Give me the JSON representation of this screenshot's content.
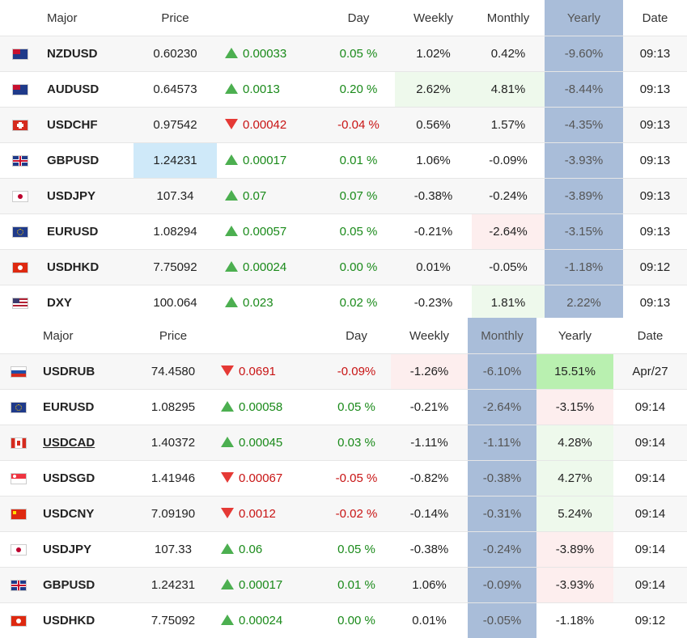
{
  "headers": {
    "t1": [
      "Major",
      "Price",
      "",
      "Day",
      "Weekly",
      "Monthly",
      "Yearly",
      "Date"
    ],
    "t2": [
      "Major",
      "Price",
      "",
      "Day",
      "Weekly",
      "Monthly",
      "Yearly",
      "Date"
    ]
  },
  "table1": [
    {
      "flag": "nz-flag-icon",
      "sym": "NZDUSD",
      "price": "0.60230",
      "dir": "up",
      "chg": "0.00033",
      "day": "0.05 %",
      "weekly": "1.02%",
      "monthly": "0.42%",
      "yearly": "-9.60%",
      "date": "09:13"
    },
    {
      "flag": "au-flag-icon",
      "sym": "AUDUSD",
      "price": "0.64573",
      "dir": "up",
      "chg": "0.0013",
      "day": "0.20 %",
      "weekly": "2.62%",
      "monthly": "4.81%",
      "yearly": "-8.44%",
      "date": "09:13"
    },
    {
      "flag": "ch-flag-icon",
      "sym": "USDCHF",
      "price": "0.97542",
      "dir": "dn",
      "chg": "0.00042",
      "day": "-0.04 %",
      "weekly": "0.56%",
      "monthly": "1.57%",
      "yearly": "-4.35%",
      "date": "09:13"
    },
    {
      "flag": "gb-flag-icon",
      "sym": "GBPUSD",
      "price": "1.24231",
      "dir": "up",
      "chg": "0.00017",
      "day": "0.01 %",
      "weekly": "1.06%",
      "monthly": "-0.09%",
      "yearly": "-3.93%",
      "date": "09:13"
    },
    {
      "flag": "jp-flag-icon",
      "sym": "USDJPY",
      "price": "107.34",
      "dir": "up",
      "chg": "0.07",
      "day": "0.07 %",
      "weekly": "-0.38%",
      "monthly": "-0.24%",
      "yearly": "-3.89%",
      "date": "09:13"
    },
    {
      "flag": "eu-flag-icon",
      "sym": "EURUSD",
      "price": "1.08294",
      "dir": "up",
      "chg": "0.00057",
      "day": "0.05 %",
      "weekly": "-0.21%",
      "monthly": "-2.64%",
      "yearly": "-3.15%",
      "date": "09:13"
    },
    {
      "flag": "hk-flag-icon",
      "sym": "USDHKD",
      "price": "7.75092",
      "dir": "up",
      "chg": "0.00024",
      "day": "0.00 %",
      "weekly": "0.01%",
      "monthly": "-0.05%",
      "yearly": "-1.18%",
      "date": "09:12"
    },
    {
      "flag": "us-flag-icon",
      "sym": "DXY",
      "price": "100.064",
      "dir": "up",
      "chg": "0.023",
      "day": "0.02 %",
      "weekly": "-0.23%",
      "monthly": "1.81%",
      "yearly": "2.22%",
      "date": "09:13"
    }
  ],
  "table2": [
    {
      "flag": "ru-flag-icon",
      "sym": "USDRUB",
      "price": "74.4580",
      "dir": "dn",
      "chg": "0.0691",
      "day": "-0.09%",
      "weekly": "-1.26%",
      "monthly": "-6.10%",
      "yearly": "15.51%",
      "date": "Apr/27"
    },
    {
      "flag": "eu-flag-icon",
      "sym": "EURUSD",
      "price": "1.08295",
      "dir": "up",
      "chg": "0.00058",
      "day": "0.05 %",
      "weekly": "-0.21%",
      "monthly": "-2.64%",
      "yearly": "-3.15%",
      "date": "09:14"
    },
    {
      "flag": "ca-flag-icon",
      "sym": "USDCAD",
      "price": "1.40372",
      "dir": "up",
      "chg": "0.00045",
      "day": "0.03 %",
      "weekly": "-1.11%",
      "monthly": "-1.11%",
      "yearly": "4.28%",
      "date": "09:14"
    },
    {
      "flag": "sg-flag-icon",
      "sym": "USDSGD",
      "price": "1.41946",
      "dir": "dn",
      "chg": "0.00067",
      "day": "-0.05 %",
      "weekly": "-0.82%",
      "monthly": "-0.38%",
      "yearly": "4.27%",
      "date": "09:14"
    },
    {
      "flag": "cn-flag-icon",
      "sym": "USDCNY",
      "price": "7.09190",
      "dir": "dn",
      "chg": "0.0012",
      "day": "-0.02 %",
      "weekly": "-0.14%",
      "monthly": "-0.31%",
      "yearly": "5.24%",
      "date": "09:14"
    },
    {
      "flag": "jp-flag-icon",
      "sym": "USDJPY",
      "price": "107.33",
      "dir": "up",
      "chg": "0.06",
      "day": "0.05 %",
      "weekly": "-0.38%",
      "monthly": "-0.24%",
      "yearly": "-3.89%",
      "date": "09:14"
    },
    {
      "flag": "gb-flag-icon",
      "sym": "GBPUSD",
      "price": "1.24231",
      "dir": "up",
      "chg": "0.00017",
      "day": "0.01 %",
      "weekly": "1.06%",
      "monthly": "-0.09%",
      "yearly": "-3.93%",
      "date": "09:14"
    },
    {
      "flag": "hk-flag-icon",
      "sym": "USDHKD",
      "price": "7.75092",
      "dir": "up",
      "chg": "0.00024",
      "day": "0.00 %",
      "weekly": "0.01%",
      "monthly": "-0.05%",
      "yearly": "-1.18%",
      "date": "09:12"
    }
  ],
  "colors": {
    "highlight_column": "#a9bdd9",
    "up": "#1a8a1a",
    "down": "#c81414",
    "arrow_up": "#4caf50",
    "arrow_down": "#e53935"
  }
}
